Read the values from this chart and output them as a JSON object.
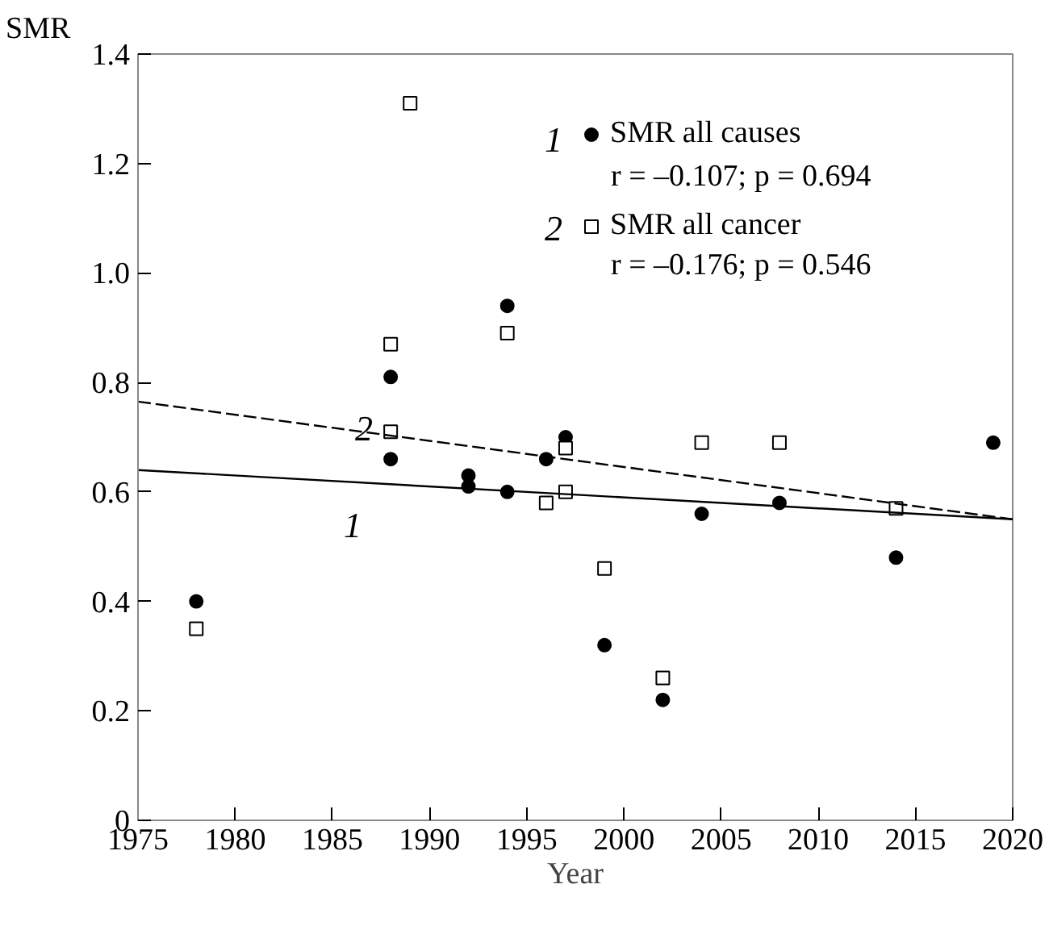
{
  "chart_data": {
    "type": "scatter",
    "xlabel": "Year",
    "ylabel": "SMR",
    "xlim": [
      1975,
      2020
    ],
    "ylim": [
      0,
      1.4
    ],
    "xticks": [
      1975,
      1980,
      1985,
      1990,
      1995,
      2000,
      2005,
      2010,
      2015,
      2020
    ],
    "yticks": [
      {
        "value": 0,
        "label": "0"
      },
      {
        "value": 0.2,
        "label": "0.2"
      },
      {
        "value": 0.4,
        "label": "0.4"
      },
      {
        "value": 0.6,
        "label": "0.6"
      },
      {
        "value": 0.8,
        "label": "0.8"
      },
      {
        "value": 1.0,
        "label": "1.0"
      },
      {
        "value": 1.2,
        "label": "1.2"
      },
      {
        "value": 1.4,
        "label": "1.4"
      }
    ],
    "grid": false,
    "legend": "top right",
    "series": [
      {
        "name": "SMR all causes",
        "color": "#000000",
        "marker": "circle",
        "x": [
          1978,
          1988,
          1988,
          1992,
          1992,
          1994,
          1994,
          1996,
          1997,
          1999,
          2002,
          2004,
          2008,
          2014,
          2019
        ],
        "values": [
          0.4,
          0.81,
          0.66,
          0.63,
          0.61,
          0.94,
          0.6,
          0.66,
          0.7,
          0.32,
          0.22,
          0.56,
          0.58,
          0.48,
          0.69
        ]
      },
      {
        "name": "SMR all cancer",
        "color": "#000000",
        "marker": "square",
        "x": [
          1978,
          1988,
          1988,
          1989,
          1994,
          1996,
          1997,
          1997,
          1999,
          2002,
          2004,
          2008,
          2014
        ],
        "values": [
          0.35,
          0.87,
          0.71,
          1.31,
          0.89,
          0.58,
          0.68,
          0.6,
          0.46,
          0.26,
          0.69,
          0.69,
          0.57
        ]
      },
      {
        "type": "line",
        "color": "#000000",
        "line_style": "solid",
        "x": [
          1975,
          2020
        ],
        "values": [
          0.64,
          0.55
        ]
      },
      {
        "type": "line",
        "color": "#000000",
        "line_style": "dashed",
        "x": [
          1975,
          2020
        ],
        "values": [
          0.765,
          0.55
        ]
      }
    ],
    "annotations": [
      "1",
      "2",
      "1",
      "r = –0.107; p = 0.694",
      "2",
      "r = –0.176; p = 0.546"
    ]
  }
}
